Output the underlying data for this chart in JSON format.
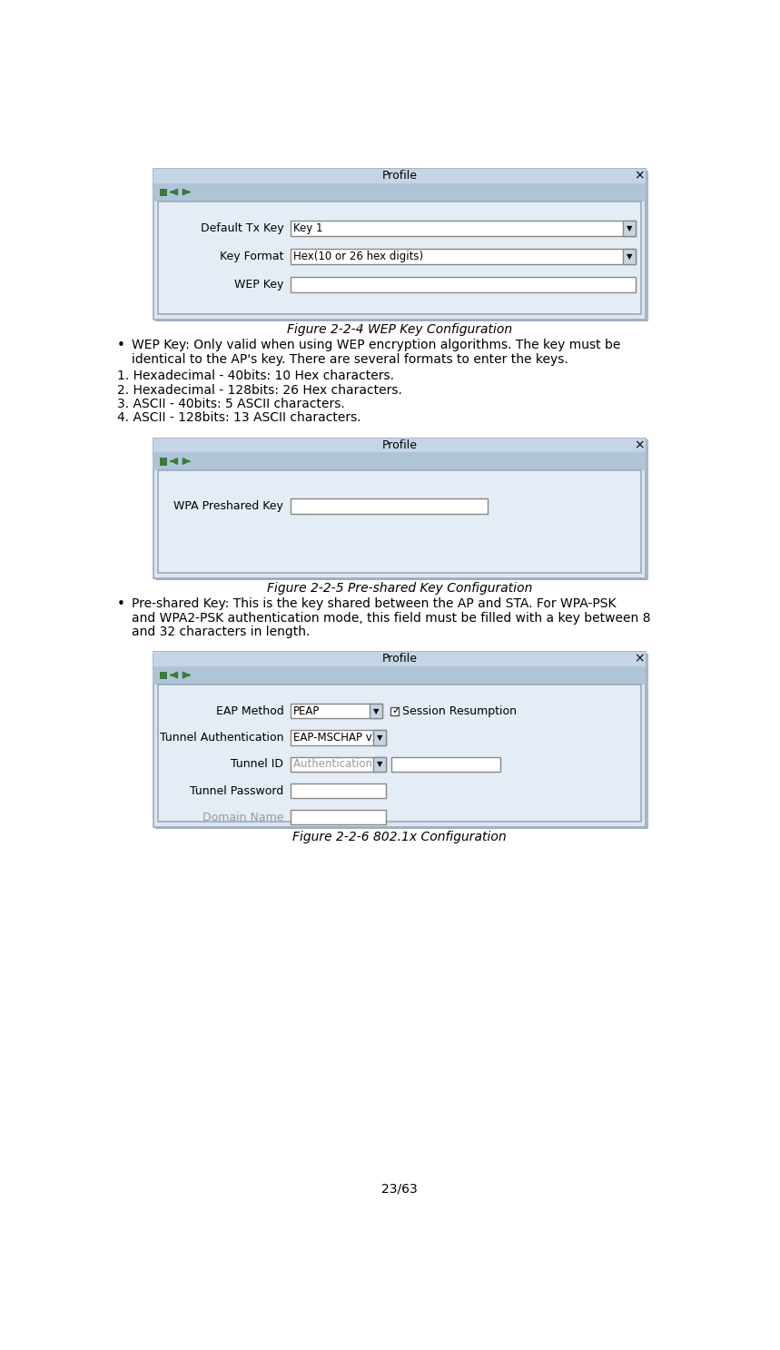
{
  "bg_color": "#ffffff",
  "fig_width": 8.59,
  "fig_height": 14.87,
  "dialog_bg": "#dce6f0",
  "dialog_title_bg": "#c5d5e5",
  "dialog_border": "#9aaabb",
  "field_bg": "#ffffff",
  "toolbar_bg": "#b0c4d8",
  "inner_panel_bg": "#e4edf5",
  "text_color": "#000000",
  "gray_text": "#999999",
  "green_square": "#3a7a3a",
  "arrow_color": "#3a7a3a",
  "figure1_caption": "Figure 2-2-4 WEP Key Configuration",
  "figure2_caption": "Figure 2-2-5 Pre-shared Key Configuration",
  "figure3_caption": "Figure 2-2-6 802.1x Configuration",
  "page_number": "23/63",
  "list_items": [
    "1. Hexadecimal - 40bits: 10 Hex characters.",
    "2. Hexadecimal - 128bits: 26 Hex characters.",
    "3. ASCII - 40bits: 5 ASCII characters.",
    "4. ASCII - 128bits: 13 ASCII characters."
  ]
}
